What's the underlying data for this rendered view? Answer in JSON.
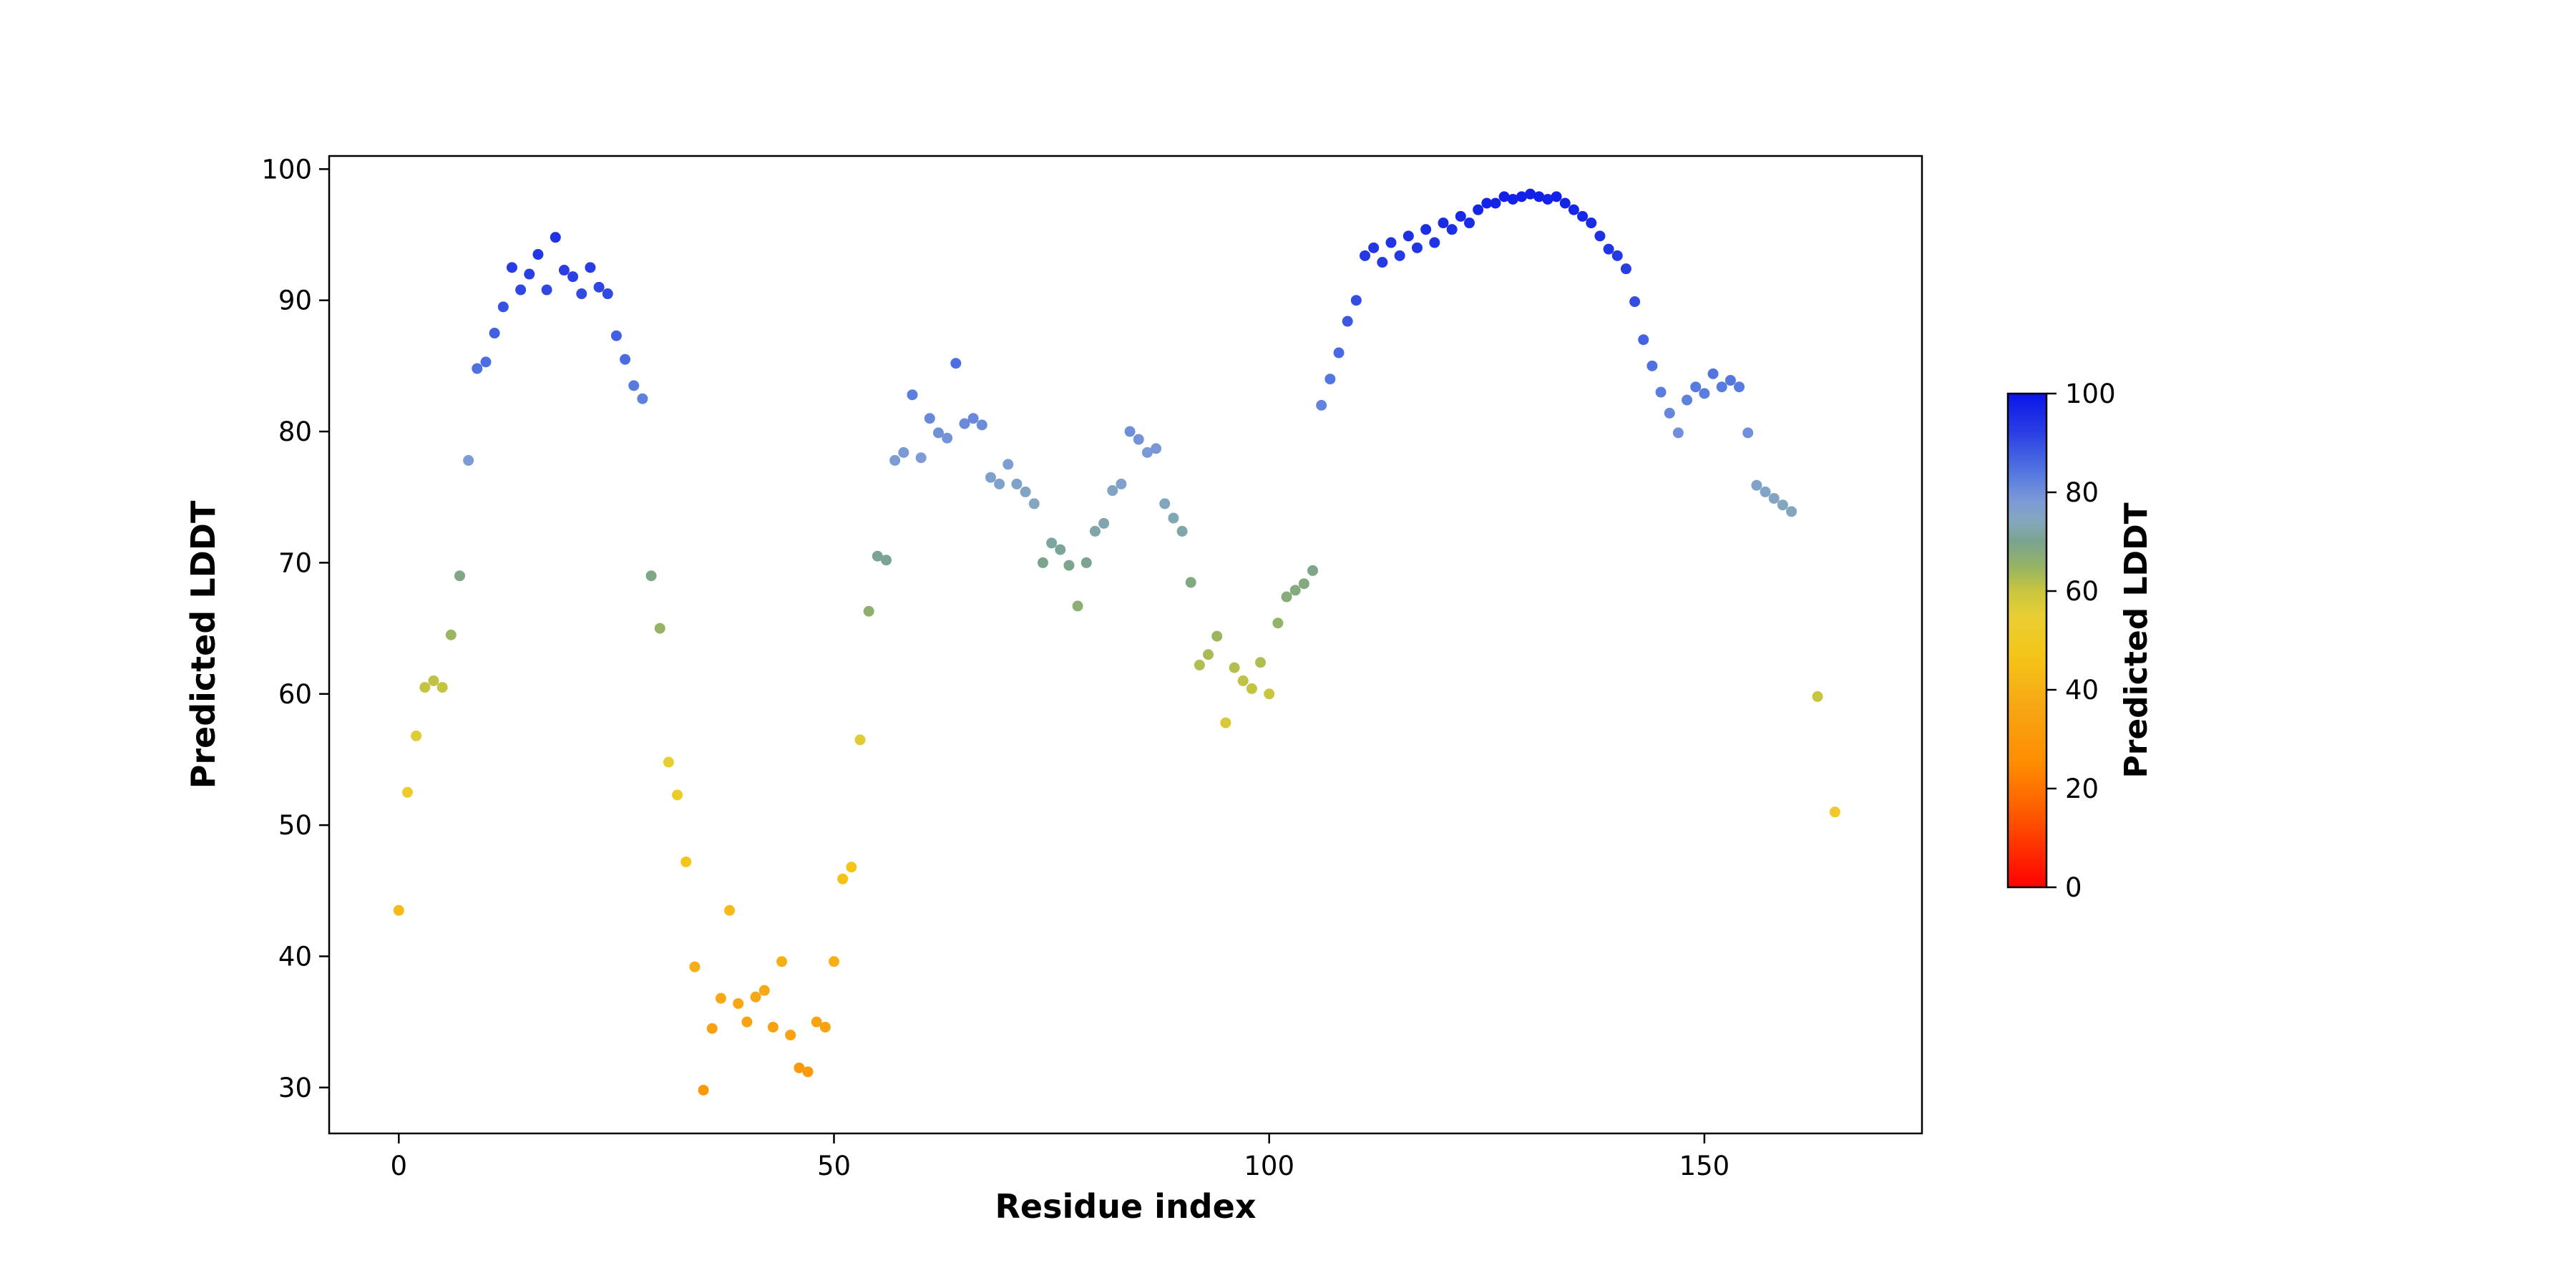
{
  "chart_data": {
    "type": "scatter",
    "title": "",
    "xlabel": "Residue index",
    "ylabel": "Predicted LDDT",
    "xlim": [
      -8,
      175
    ],
    "ylim": [
      26.5,
      101
    ],
    "xticks": [
      0,
      50,
      100,
      150
    ],
    "yticks": [
      30,
      40,
      50,
      60,
      70,
      80,
      90,
      100
    ],
    "grid": false,
    "marker": "circle",
    "marker_radius": 7.5,
    "x_is_index": true,
    "values": [
      43.5,
      52.5,
      56.8,
      60.5,
      61.0,
      60.5,
      64.5,
      69.0,
      77.8,
      84.8,
      85.3,
      87.5,
      89.5,
      92.5,
      90.8,
      92.0,
      93.5,
      90.8,
      94.8,
      92.3,
      91.8,
      90.5,
      92.5,
      91.0,
      90.5,
      87.3,
      85.5,
      83.5,
      82.5,
      69.0,
      65.0,
      54.8,
      52.3,
      47.2,
      39.2,
      29.8,
      34.5,
      36.8,
      43.5,
      36.4,
      35.0,
      36.9,
      37.4,
      34.6,
      39.6,
      34.0,
      31.5,
      31.2,
      35.0,
      34.6,
      39.6,
      45.9,
      46.8,
      56.5,
      66.3,
      70.5,
      70.2,
      77.8,
      78.4,
      82.8,
      78.0,
      81.0,
      79.9,
      79.5,
      85.2,
      80.6,
      81.0,
      80.5,
      76.5,
      76.0,
      77.5,
      76.0,
      75.4,
      74.5,
      70.0,
      71.5,
      71.0,
      69.8,
      66.7,
      70.0,
      72.4,
      73.0,
      75.5,
      76.0,
      80.0,
      79.4,
      78.4,
      78.7,
      74.5,
      73.4,
      72.4,
      68.5,
      62.2,
      63.0,
      64.4,
      57.8,
      62.0,
      61.0,
      60.4,
      62.4,
      60.0,
      65.4,
      67.4,
      67.9,
      68.4,
      69.4,
      82.0,
      84.0,
      86.0,
      88.4,
      90.0,
      93.4,
      94.0,
      92.9,
      94.4,
      93.4,
      94.9,
      94.0,
      95.4,
      94.4,
      95.9,
      95.4,
      96.4,
      95.9,
      96.9,
      97.4,
      97.4,
      97.9,
      97.7,
      97.9,
      98.1,
      97.9,
      97.7,
      97.9,
      97.4,
      96.9,
      96.4,
      95.9,
      94.9,
      93.9,
      93.4,
      92.4,
      89.9,
      87.0,
      85.0,
      83.0,
      81.4,
      79.9,
      82.4,
      83.4,
      82.9,
      84.4,
      83.4,
      83.9,
      83.4,
      79.9,
      75.9,
      75.4,
      74.9,
      74.4,
      73.9,
      null,
      null,
      59.8,
      null,
      51.0
    ],
    "colorbar": {
      "label": "Predicted LDDT",
      "ticks": [
        0,
        20,
        40,
        60,
        80,
        100
      ],
      "range": [
        0,
        100
      ]
    },
    "colormap_stops": [
      {
        "v": 0,
        "c": "#ff0000"
      },
      {
        "v": 15,
        "c": "#ff5a00"
      },
      {
        "v": 25,
        "c": "#ff8c00"
      },
      {
        "v": 37,
        "c": "#f7a815"
      },
      {
        "v": 47,
        "c": "#f5c518"
      },
      {
        "v": 55,
        "c": "#e8ce33"
      },
      {
        "v": 60,
        "c": "#c9c53e"
      },
      {
        "v": 65,
        "c": "#95b464"
      },
      {
        "v": 70,
        "c": "#7aa48f"
      },
      {
        "v": 74,
        "c": "#83a7bb"
      },
      {
        "v": 78,
        "c": "#7d9bd6"
      },
      {
        "v": 84,
        "c": "#5377e0"
      },
      {
        "v": 92,
        "c": "#2a3fe3"
      },
      {
        "v": 100,
        "c": "#0a16ea"
      }
    ],
    "colors": {
      "axes_edge": "#000000",
      "background": "#ffffff",
      "tick_label": "#000000"
    },
    "layout": {
      "plot_left": 460,
      "plot_right": 2686,
      "plot_top": 218,
      "plot_bottom": 1584,
      "cbar_left": 2806,
      "cbar_top": 550,
      "cbar_width": 54,
      "cbar_height": 690
    }
  }
}
